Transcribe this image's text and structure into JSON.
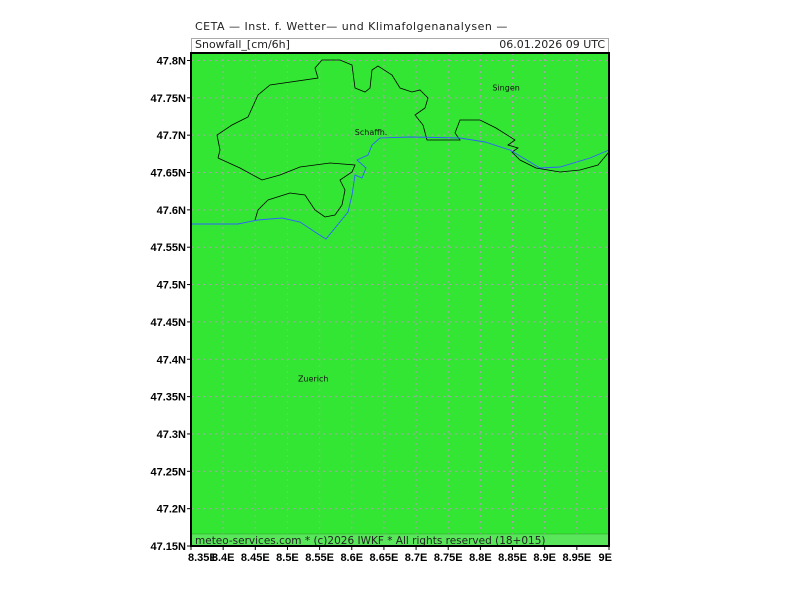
{
  "header": {
    "title": "CETA — Inst. f. Wetter— und Klimafolgenanalysen —",
    "variable": "Snowfall_[cm/6h]",
    "valid_time": "06.01.2026 09 UTC"
  },
  "footer": {
    "credit": "meteo-services.com * (c)2026 IWKF * All rights reserved (18+015)"
  },
  "map": {
    "fill_color": "#33e633",
    "border_color": "#000000",
    "river_color": "#3060ff",
    "grid_color": "#b0a0b0",
    "lon_range": [
      8.35,
      9.0
    ],
    "lat_range": [
      47.15,
      47.81
    ],
    "lon_ticks": [
      "8.35E",
      "8.4E",
      "8.45E",
      "8.5E",
      "8.55E",
      "8.6E",
      "8.65E",
      "8.7E",
      "8.75E",
      "8.8E",
      "8.85E",
      "8.9E",
      "8.95E",
      "9E"
    ],
    "lat_ticks": [
      "47.15N",
      "47.2N",
      "47.25N",
      "47.3N",
      "47.35N",
      "47.4N",
      "47.45N",
      "47.5N",
      "47.55N",
      "47.6N",
      "47.65N",
      "47.7N",
      "47.75N",
      "47.8N"
    ],
    "cities": [
      {
        "name": "Singen",
        "lon": 8.84,
        "lat": 47.76
      },
      {
        "name": "Schaffh.",
        "lon": 8.63,
        "lat": 47.7
      },
      {
        "name": "Zuerich",
        "lon": 8.54,
        "lat": 47.37
      }
    ]
  }
}
